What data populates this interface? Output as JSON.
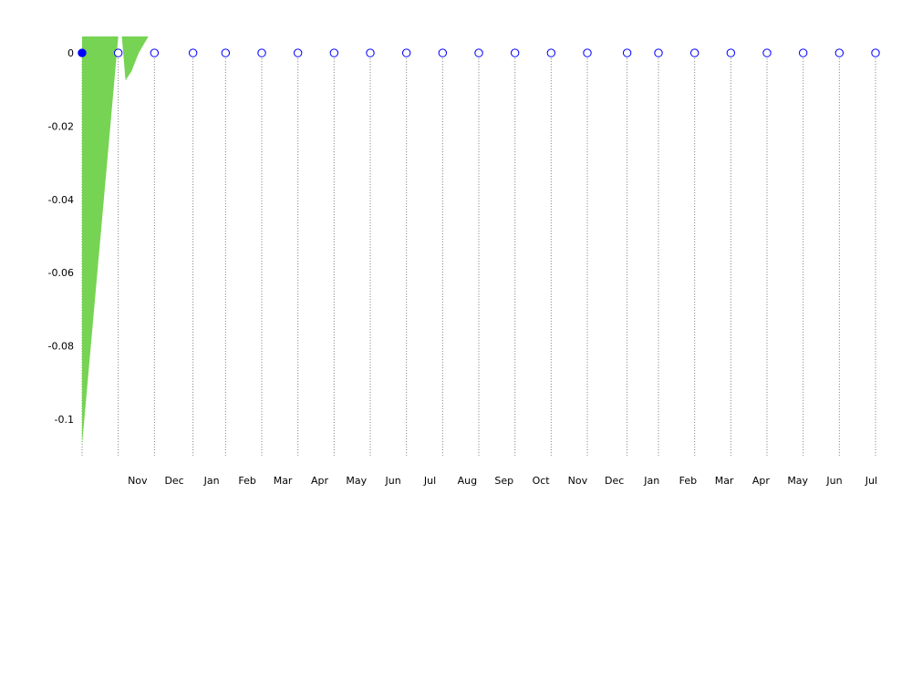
{
  "chart_data": {
    "type": "area",
    "title": "",
    "xlabel": "",
    "ylabel": "",
    "ylim": [
      -0.11,
      0.0045
    ],
    "y_ticks": [
      0,
      -0.02,
      -0.04,
      -0.06,
      -0.08,
      -0.1
    ],
    "y_tick_labels": [
      "0",
      "-0.02",
      "-0.04",
      "-0.06",
      "-0.08",
      "-0.1"
    ],
    "x_range": [
      "2022-10-01",
      "2024-07-31"
    ],
    "x_month_labels": [
      {
        "label": "Nov",
        "date": "2022-11-01"
      },
      {
        "label": "Dec",
        "date": "2022-12-01"
      },
      {
        "label": "Jan",
        "date": "2023-01-01"
      },
      {
        "label": "Feb",
        "date": "2023-02-01"
      },
      {
        "label": "Mar",
        "date": "2023-03-01"
      },
      {
        "label": "Apr",
        "date": "2023-04-01"
      },
      {
        "label": "May",
        "date": "2023-05-01"
      },
      {
        "label": "Jun",
        "date": "2023-06-01"
      },
      {
        "label": "Jul",
        "date": "2023-07-01"
      },
      {
        "label": "Aug",
        "date": "2023-08-01"
      },
      {
        "label": "Sep",
        "date": "2023-09-01"
      },
      {
        "label": "Oct",
        "date": "2023-10-01"
      },
      {
        "label": "Nov",
        "date": "2023-11-01"
      },
      {
        "label": "Dec",
        "date": "2023-12-01"
      },
      {
        "label": "Jan",
        "date": "2024-01-01"
      },
      {
        "label": "Feb",
        "date": "2024-02-01"
      },
      {
        "label": "Mar",
        "date": "2024-03-01"
      },
      {
        "label": "Apr",
        "date": "2024-04-01"
      },
      {
        "label": "May",
        "date": "2024-05-01"
      },
      {
        "label": "Jun",
        "date": "2024-06-01"
      },
      {
        "label": "Jul",
        "date": "2024-07-01"
      }
    ],
    "markers": {
      "y_value": 0,
      "dates": [
        "2022-10-01",
        "2022-10-31",
        "2022-11-30",
        "2023-01-01",
        "2023-01-28",
        "2023-02-27",
        "2023-03-29",
        "2023-04-28",
        "2023-05-28",
        "2023-06-27",
        "2023-07-27",
        "2023-08-26",
        "2023-09-25",
        "2023-10-25",
        "2023-11-24",
        "2023-12-27",
        "2024-01-22",
        "2024-02-21",
        "2024-03-22",
        "2024-04-21",
        "2024-05-21",
        "2024-06-20",
        "2024-07-20"
      ],
      "filled_index": 0,
      "color": "#0000ff"
    },
    "series": [
      {
        "color": "#77d353",
        "points": [
          {
            "x": "2022-10-01",
            "y": -0.107
          },
          {
            "x": "2022-10-31",
            "y": 0.0045
          },
          {
            "x": "2022-11-03",
            "y": 0.0045
          },
          {
            "x": "2022-11-06",
            "y": -0.0075
          },
          {
            "x": "2022-11-11",
            "y": -0.005
          },
          {
            "x": "2022-11-17",
            "y": 0.0
          },
          {
            "x": "2022-11-25",
            "y": 0.0045
          }
        ]
      }
    ],
    "grid": "vertical dotted lines at marker dates",
    "legend": "none"
  }
}
